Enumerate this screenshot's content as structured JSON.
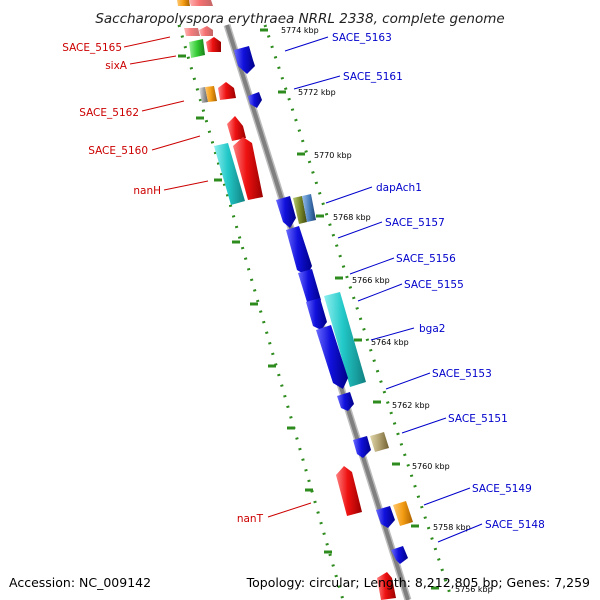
{
  "title": "Saccharopolyspora erythraea NRRL 2338, complete genome",
  "accession": "Accession: NC_009142",
  "topology": "Topology: circular; Length: 8,212,805 bp; Genes: 7,259",
  "ticks": [
    "5774 kbp",
    "5772 kbp",
    "5770 kbp",
    "5768 kbp",
    "5766 kbp",
    "5764 kbp",
    "5762 kbp",
    "5760 kbp",
    "5758 kbp",
    "5756 kbp"
  ],
  "labels_left": [
    "SACE_5165",
    "sixA",
    "SACE_5162",
    "SACE_5160",
    "nanH",
    "nanT"
  ],
  "labels_right": [
    "SACE_5163",
    "SACE_5161",
    "dapAch1",
    "SACE_5157",
    "SACE_5156",
    "SACE_5155",
    "bga2",
    "SACE_5153",
    "SACE_5151",
    "SACE_5149",
    "SACE_5148"
  ],
  "colors": {
    "left_label": "#cc0000",
    "right_label": "#0000cc",
    "backbone": "#888888",
    "track_dots": "#2e8b1e",
    "red": "#ee1111",
    "blue": "#1111dd",
    "cyan": "#22c8c8",
    "green": "#33cc33",
    "orange": "#f39c12",
    "khaki": "#b0a070",
    "olive": "#7a8a2a",
    "grey": "#a0a0a0"
  }
}
